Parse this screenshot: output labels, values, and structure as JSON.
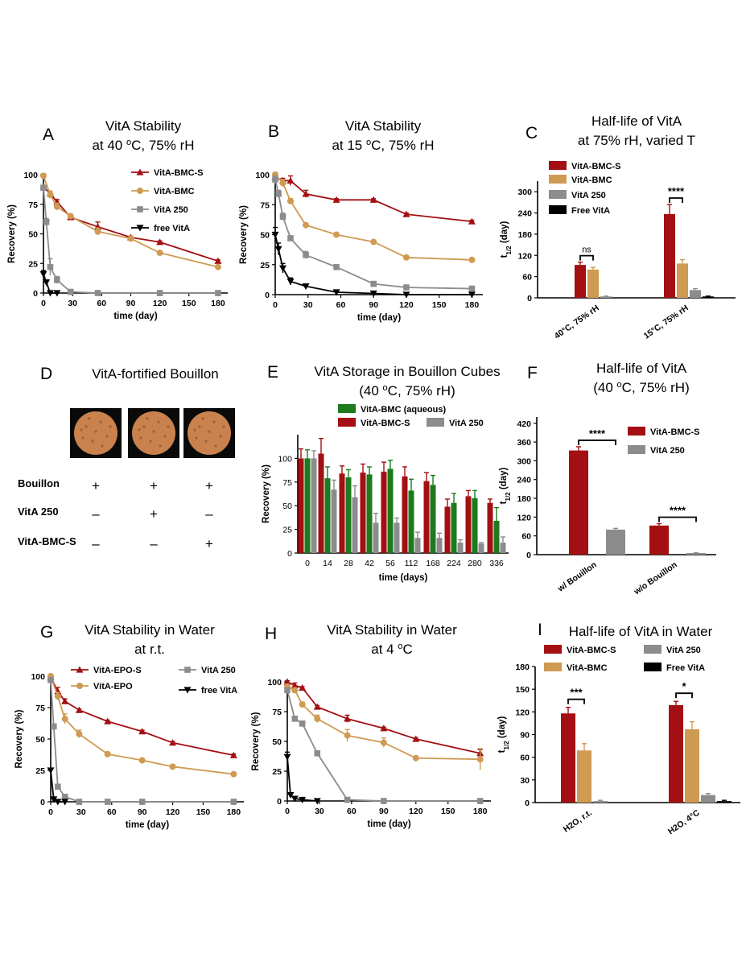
{
  "colors": {
    "red": "#a30f12",
    "tan": "#cf9a52",
    "gray": "#8c8c8c",
    "black": "#000000",
    "green": "#1d7a1d",
    "bouillon": "#c9824e"
  },
  "chart_data": [
    {
      "id": "A",
      "type": "line",
      "panel_label": "A",
      "title": [
        "VitA Stability",
        "at 40 °C, 75% rH"
      ],
      "xlabel": "time (day)",
      "ylabel": "Recovery (%)",
      "xlim": [
        0,
        190
      ],
      "ylim": [
        0,
        100
      ],
      "xticks": [
        0,
        30,
        60,
        90,
        120,
        150,
        180
      ],
      "yticks": [
        0,
        25,
        50,
        75,
        100
      ],
      "series": [
        {
          "name": "VitA-BMC-S",
          "color": "#a30f12",
          "marker": "triangle",
          "x": [
            0,
            7,
            14,
            28,
            56,
            90,
            120,
            180
          ],
          "y": [
            90,
            84,
            77,
            64,
            56,
            47,
            43,
            27
          ],
          "err": [
            1,
            2,
            2,
            2,
            4,
            1,
            1,
            1
          ]
        },
        {
          "name": "VitA-BMC",
          "color": "#cf9a52",
          "marker": "circle",
          "x": [
            0,
            7,
            14,
            28,
            56,
            90,
            120,
            180
          ],
          "y": [
            99,
            83,
            73,
            65,
            52,
            46,
            34,
            22
          ],
          "err": [
            2,
            3,
            3,
            1,
            3,
            1,
            1,
            1
          ]
        },
        {
          "name": "VitA 250",
          "color": "#8c8c8c",
          "marker": "square",
          "x": [
            0,
            3,
            7,
            14,
            28,
            56,
            120,
            180
          ],
          "y": [
            89,
            60,
            22,
            11,
            1,
            0,
            0,
            0
          ],
          "err": [
            1,
            3,
            7,
            3,
            1,
            0,
            0,
            0
          ]
        },
        {
          "name": "free VitA",
          "color": "#000000",
          "marker": "tri-down",
          "x": [
            0,
            3,
            7,
            14
          ],
          "y": [
            16,
            9,
            0,
            0
          ],
          "err": [
            3,
            2,
            0,
            0
          ]
        }
      ]
    },
    {
      "id": "B",
      "type": "line",
      "panel_label": "B",
      "title": [
        "VitA Stability",
        "at 15 °C, 75% rH"
      ],
      "xlabel": "time (day)",
      "ylabel": "Recovery (%)",
      "xlim": [
        0,
        190
      ],
      "ylim": [
        0,
        100
      ],
      "xticks": [
        0,
        30,
        60,
        90,
        120,
        150,
        180
      ],
      "yticks": [
        0,
        25,
        50,
        75,
        100
      ],
      "series": [
        {
          "name": "VitA-BMC-S",
          "color": "#a30f12",
          "marker": "triangle",
          "x": [
            0,
            7,
            14,
            28,
            56,
            90,
            120,
            180
          ],
          "y": [
            98,
            95,
            95,
            84,
            79,
            79,
            67,
            61
          ],
          "err": [
            2,
            2,
            4,
            3,
            1,
            1,
            1,
            1
          ]
        },
        {
          "name": "VitA-BMC",
          "color": "#cf9a52",
          "marker": "circle",
          "x": [
            0,
            7,
            14,
            28,
            56,
            90,
            120,
            180
          ],
          "y": [
            100,
            93,
            78,
            58,
            50,
            44,
            31,
            29
          ],
          "err": [
            2,
            3,
            2,
            1,
            1,
            1,
            1,
            1
          ]
        },
        {
          "name": "VitA 250",
          "color": "#8c8c8c",
          "marker": "square",
          "x": [
            0,
            3,
            7,
            14,
            28,
            56,
            90,
            120,
            180
          ],
          "y": [
            96,
            84,
            65,
            47,
            33,
            23,
            9,
            6,
            5
          ],
          "err": [
            3,
            3,
            3,
            2,
            3,
            1,
            1,
            1,
            1
          ]
        },
        {
          "name": "free VitA",
          "color": "#000000",
          "marker": "tri-down",
          "x": [
            0,
            3,
            7,
            14,
            28,
            56,
            90,
            120,
            180
          ],
          "y": [
            50,
            38,
            22,
            11,
            7,
            2,
            1,
            0,
            0
          ],
          "err": [
            6,
            5,
            4,
            3,
            1,
            0,
            0,
            0,
            0
          ]
        }
      ]
    },
    {
      "id": "C",
      "type": "bar",
      "panel_label": "C",
      "title": [
        "Half-life of VitA",
        "at 75% rH, varied T"
      ],
      "ylabel": "t1/2 (day)",
      "ylim": [
        0,
        330
      ],
      "yticks": [
        0,
        60,
        120,
        180,
        240,
        300
      ],
      "categories": [
        "40°C, 75% rH",
        "15°C, 75% rH"
      ],
      "series": [
        {
          "name": "VitA-BMC-S",
          "color": "#a30f12",
          "values": [
            93,
            237
          ],
          "err": [
            8,
            27
          ]
        },
        {
          "name": "VitA-BMC",
          "color": "#cf9a52",
          "values": [
            80,
            97
          ],
          "err": [
            6,
            11
          ]
        },
        {
          "name": "VitA 250",
          "color": "#8c8c8c",
          "values": [
            4,
            22
          ],
          "err": [
            1,
            4
          ]
        },
        {
          "name": "Free VitA",
          "color": "#000000",
          "values": [
            0,
            4
          ],
          "err": [
            0,
            1
          ]
        }
      ],
      "significance": [
        {
          "category": 0,
          "label": "ns"
        },
        {
          "category": 1,
          "label": "****"
        }
      ]
    },
    {
      "id": "E",
      "type": "bar",
      "panel_label": "E",
      "title": [
        "VitA Storage in Bouillon Cubes",
        "(40 °C, 75% rH)"
      ],
      "xlabel": "time (days)",
      "ylabel": "Recovery (%)",
      "ylim": [
        0,
        125
      ],
      "yticks": [
        0,
        25,
        50,
        75,
        100
      ],
      "categories": [
        "0",
        "14",
        "28",
        "42",
        "56",
        "112",
        "168",
        "224",
        "280",
        "336"
      ],
      "series": [
        {
          "name": "VitA-BMC-S",
          "color": "#a30f12",
          "values": [
            100,
            105,
            84,
            85,
            86,
            81,
            76,
            49,
            60,
            53
          ],
          "err": [
            10,
            16,
            8,
            9,
            10,
            10,
            9,
            8,
            6,
            4
          ]
        },
        {
          "name": "VitA-BMC (aqueous)",
          "color": "#1d7a1d",
          "values": [
            100,
            79,
            80,
            83,
            89,
            66,
            72,
            53,
            58,
            34
          ],
          "err": [
            9,
            12,
            8,
            8,
            9,
            12,
            10,
            10,
            8,
            14
          ]
        },
        {
          "name": "VitA 250",
          "color": "#8c8c8c",
          "values": [
            100,
            67,
            59,
            32,
            32,
            16,
            16,
            11,
            10,
            11
          ],
          "err": [
            8,
            10,
            12,
            10,
            5,
            6,
            5,
            3,
            1,
            6
          ]
        }
      ]
    },
    {
      "id": "F",
      "type": "bar",
      "panel_label": "F",
      "title": [
        "Half-life of VitA",
        "(40 °C, 75% rH)"
      ],
      "ylabel": "t1/2 (day)",
      "ylim": [
        0,
        440
      ],
      "yticks": [
        0,
        60,
        120,
        180,
        240,
        300,
        360,
        420
      ],
      "categories": [
        "w/ Bouillon",
        "w/o Bouillon"
      ],
      "series": [
        {
          "name": "VitA-BMC-S",
          "color": "#a30f12",
          "values": [
            333,
            93
          ],
          "err": [
            12,
            6
          ]
        },
        {
          "name": "VitA 250",
          "color": "#8c8c8c",
          "values": [
            80,
            5
          ],
          "err": [
            4,
            1
          ]
        }
      ],
      "significance": [
        {
          "category": 0,
          "label": "****"
        },
        {
          "category": 1,
          "label": "****"
        }
      ]
    },
    {
      "id": "G",
      "type": "line",
      "panel_label": "G",
      "title": [
        "VitA Stability in Water",
        "at r.t."
      ],
      "xlabel": "time (day)",
      "ylabel": "Recovery (%)",
      "xlim": [
        0,
        190
      ],
      "ylim": [
        0,
        100
      ],
      "xticks": [
        0,
        30,
        60,
        90,
        120,
        150,
        180
      ],
      "yticks": [
        0,
        25,
        50,
        75,
        100
      ],
      "series": [
        {
          "name": "VitA-EPO-S",
          "color": "#a30f12",
          "marker": "triangle",
          "x": [
            0,
            7,
            14,
            28,
            56,
            90,
            120,
            180
          ],
          "y": [
            99,
            88,
            80,
            73,
            64,
            56,
            47,
            37
          ],
          "err": [
            1,
            3,
            2,
            1,
            1,
            1,
            1,
            1
          ]
        },
        {
          "name": "VitA-EPO",
          "color": "#cf9a52",
          "marker": "circle",
          "x": [
            0,
            7,
            14,
            28,
            56,
            90,
            120,
            180
          ],
          "y": [
            100,
            84,
            66,
            54,
            38,
            33,
            28,
            22
          ],
          "err": [
            1,
            3,
            4,
            3,
            1,
            1,
            1,
            1
          ]
        },
        {
          "name": "VitA 250",
          "color": "#8c8c8c",
          "marker": "square",
          "x": [
            0,
            3,
            7,
            14,
            28,
            56,
            90,
            180
          ],
          "y": [
            97,
            60,
            12,
            4,
            0,
            0,
            0,
            0
          ],
          "err": [
            1,
            2,
            1,
            1,
            0,
            0,
            0,
            0
          ]
        },
        {
          "name": "free VitA",
          "color": "#000000",
          "marker": "tri-down",
          "x": [
            0,
            3,
            7,
            14
          ],
          "y": [
            25,
            2,
            0,
            0
          ],
          "err": [
            1,
            1,
            0,
            0
          ]
        }
      ]
    },
    {
      "id": "H",
      "type": "line",
      "panel_label": "H",
      "title": [
        "VitA Stability in Water",
        "at 4 °C"
      ],
      "xlabel": "time (day)",
      "ylabel": "Recovery (%)",
      "xlim": [
        0,
        190
      ],
      "ylim": [
        0,
        100
      ],
      "xticks": [
        0,
        30,
        60,
        90,
        120,
        150,
        180
      ],
      "yticks": [
        0,
        25,
        50,
        75,
        100
      ],
      "series": [
        {
          "name": "VitA-BMC-S",
          "color": "#a30f12",
          "marker": "triangle",
          "x": [
            0,
            7,
            14,
            28,
            56,
            90,
            120,
            180
          ],
          "y": [
            100,
            97,
            95,
            79,
            69,
            61,
            52,
            40
          ],
          "err": [
            1,
            2,
            1,
            1,
            3,
            1,
            1,
            3
          ]
        },
        {
          "name": "VitA-BMC",
          "color": "#cf9a52",
          "marker": "circle",
          "x": [
            0,
            7,
            14,
            28,
            56,
            90,
            120,
            180
          ],
          "y": [
            96,
            93,
            81,
            69,
            55,
            49,
            36,
            35
          ],
          "err": [
            2,
            2,
            2,
            3,
            5,
            4,
            1,
            9
          ]
        },
        {
          "name": "VitA 250",
          "color": "#8c8c8c",
          "marker": "square",
          "x": [
            0,
            7,
            14,
            28,
            56,
            90,
            180
          ],
          "y": [
            93,
            69,
            65,
            40,
            1,
            0,
            0
          ],
          "err": [
            1,
            1,
            1,
            1,
            0,
            0,
            0
          ]
        },
        {
          "name": "free VitA",
          "color": "#000000",
          "marker": "tri-down",
          "x": [
            0,
            3,
            7,
            14,
            28
          ],
          "y": [
            37,
            5,
            2,
            1,
            0
          ],
          "err": [
            4,
            1,
            1,
            0,
            0
          ]
        }
      ]
    },
    {
      "id": "I",
      "type": "bar",
      "panel_label": "I",
      "title": [
        "Half-life of VitA in Water"
      ],
      "ylabel": "t1/2 (day)",
      "ylim": [
        0,
        180
      ],
      "yticks": [
        0,
        30,
        60,
        90,
        120,
        150,
        180
      ],
      "categories": [
        "H2O, r.t.",
        "H2O, 4°C"
      ],
      "series": [
        {
          "name": "VitA-BMC-S",
          "color": "#a30f12",
          "values": [
            118,
            129
          ],
          "err": [
            8,
            5
          ]
        },
        {
          "name": "VitA-BMC",
          "color": "#cf9a52",
          "values": [
            69,
            97
          ],
          "err": [
            9,
            10
          ]
        },
        {
          "name": "VitA 250",
          "color": "#8c8c8c",
          "values": [
            2,
            10
          ],
          "err": [
            1,
            2
          ]
        },
        {
          "name": "Free VitA",
          "color": "#000000",
          "values": [
            0,
            2
          ],
          "err": [
            0,
            1
          ]
        }
      ],
      "significance": [
        {
          "category": 0,
          "label": "***"
        },
        {
          "category": 1,
          "label": "*"
        }
      ]
    }
  ],
  "panelD": {
    "panel_label": "D",
    "title": "VitA-fortified Bouillon",
    "rows": [
      {
        "label": "Bouillon",
        "values": [
          "+",
          "+",
          "+"
        ]
      },
      {
        "label": "VitA 250",
        "values": [
          "-",
          "+",
          "-"
        ]
      },
      {
        "label": "VitA-BMC-S",
        "values": [
          "-",
          "-",
          "+"
        ]
      }
    ]
  }
}
